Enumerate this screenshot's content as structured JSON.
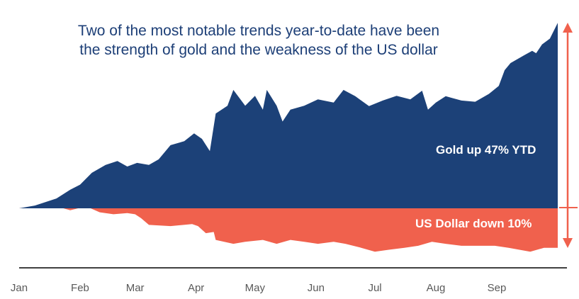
{
  "chart_data": {
    "type": "area",
    "title": [
      "Two of the most notable trends year-to-date have been",
      "the strength of gold and the weakness of the US dollar"
    ],
    "xlabel": "",
    "ylabel": "",
    "x_unit": "day of year",
    "xlim": [
      0,
      274
    ],
    "ylim": [
      -15,
      50
    ],
    "grid": false,
    "tick_labels": [
      {
        "label": "Jan",
        "day": 0
      },
      {
        "label": "Feb",
        "day": 31
      },
      {
        "label": "Mar",
        "day": 59
      },
      {
        "label": "Apr",
        "day": 90
      },
      {
        "label": "May",
        "day": 120
      },
      {
        "label": "Jun",
        "day": 151
      },
      {
        "label": "Jul",
        "day": 181
      },
      {
        "label": "Aug",
        "day": 212
      },
      {
        "label": "Sep",
        "day": 243
      }
    ],
    "series": [
      {
        "name": "Gold",
        "color": "#1c4178",
        "x": [
          0,
          8,
          19,
          26,
          31,
          37,
          44,
          50,
          55,
          60,
          66,
          71,
          77,
          84,
          89,
          93,
          97,
          100,
          106,
          109,
          115,
          120,
          124,
          126,
          131,
          134,
          138,
          145,
          152,
          160,
          165,
          171,
          178,
          185,
          192,
          199,
          205,
          208,
          212,
          217,
          225,
          232,
          239,
          244,
          247,
          250,
          257,
          261,
          263,
          266,
          270,
          274
        ],
        "values": [
          0,
          0.7,
          2.5,
          4.7,
          6,
          9,
          11,
          12,
          10.6,
          11.5,
          11,
          12.4,
          16,
          17,
          19,
          17.6,
          14.5,
          24,
          26,
          30,
          26,
          28.5,
          25,
          30,
          26,
          22,
          25,
          26,
          27.6,
          26.8,
          30,
          28.4,
          25.9,
          27.3,
          28.5,
          27.6,
          29.8,
          25,
          26.8,
          28.4,
          27.3,
          27,
          29,
          31,
          35,
          36.8,
          38.8,
          39.9,
          39.3,
          41.5,
          43,
          47
        ]
      },
      {
        "name": "US Dollar",
        "color": "#f0614d",
        "x": [
          0,
          8,
          19,
          26,
          34,
          41,
          48,
          55,
          59,
          62,
          66,
          77,
          88,
          91,
          95,
          99,
          100,
          109,
          115,
          124,
          131,
          138,
          145,
          152,
          160,
          166,
          174,
          181,
          188,
          196,
          203,
          210,
          217,
          225,
          235,
          242,
          249,
          260,
          267,
          274
        ],
        "values": [
          0,
          0.4,
          0.5,
          -0.5,
          0.5,
          -1,
          -1.5,
          -1.2,
          -1.5,
          -2.5,
          -4.2,
          -4.5,
          -4,
          -4.5,
          -6.3,
          -6,
          -8,
          -9,
          -8.5,
          -8,
          -9,
          -8,
          -8.5,
          -9,
          -8.5,
          -9,
          -10,
          -11,
          -10.5,
          -10,
          -9.5,
          -8.5,
          -9,
          -9.5,
          -9.5,
          -9.5,
          -10,
          -11,
          -10,
          -10
        ]
      }
    ],
    "annotations": [
      "Gold up 47% YTD",
      "US Dollar down 10%"
    ]
  }
}
